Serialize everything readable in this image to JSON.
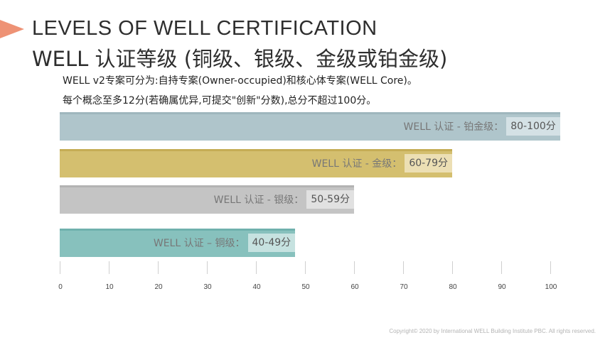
{
  "slide": {
    "title_en": "LEVELS OF WELL CERTIFICATION",
    "title_cn": "WELL 认证等级 (铜级、银级、金级或铂金级)",
    "line1": "WELL v2专案可分为:自持专案(Owner-occupied)和核心体专案(WELL Core)。",
    "line2": "每个概念至多12分(若确属优异,可提交\"创新\"分数),总分不超过100分。",
    "copyright": "Copyright© 2020 by International WELL Building Institute PBC. All rights reserved."
  },
  "colors": {
    "accent": "#ee9275",
    "platinum": "#afc5cb",
    "gold": "#d4bf6f",
    "silver": "#c4c4c4",
    "bronze": "#87c1bd"
  },
  "chart_data": {
    "type": "bar",
    "orientation": "horizontal",
    "xlim": [
      0,
      100
    ],
    "xticks": [
      "0",
      "10",
      "20",
      "30",
      "40",
      "50",
      "60",
      "70",
      "80",
      "90",
      "100"
    ],
    "bars": [
      {
        "label": "WELL 认证 - 铂金级：",
        "range": "80-100分",
        "value": 102,
        "color": "#afc5cb",
        "cap": "#9fb6bd",
        "range_bg": "#d4e1e5"
      },
      {
        "label": "WELL 认证 - 金级：",
        "range": "60-79分",
        "value": 80,
        "color": "#d4bf6f",
        "cap": "#c5ad55",
        "range_bg": "#ecdfb4"
      },
      {
        "label": "WELL 认证 - 银级：",
        "range": "50-59分",
        "value": 60,
        "color": "#c4c4c4",
        "cap": "#b3b3b3",
        "range_bg": "#e1e1e1"
      },
      {
        "label": "WELL 认证 – 铜级：",
        "range": "40-49分",
        "value": 48,
        "color": "#87c1bd",
        "cap": "#6fb1ad",
        "range_bg": "#c6e2e0"
      }
    ]
  }
}
